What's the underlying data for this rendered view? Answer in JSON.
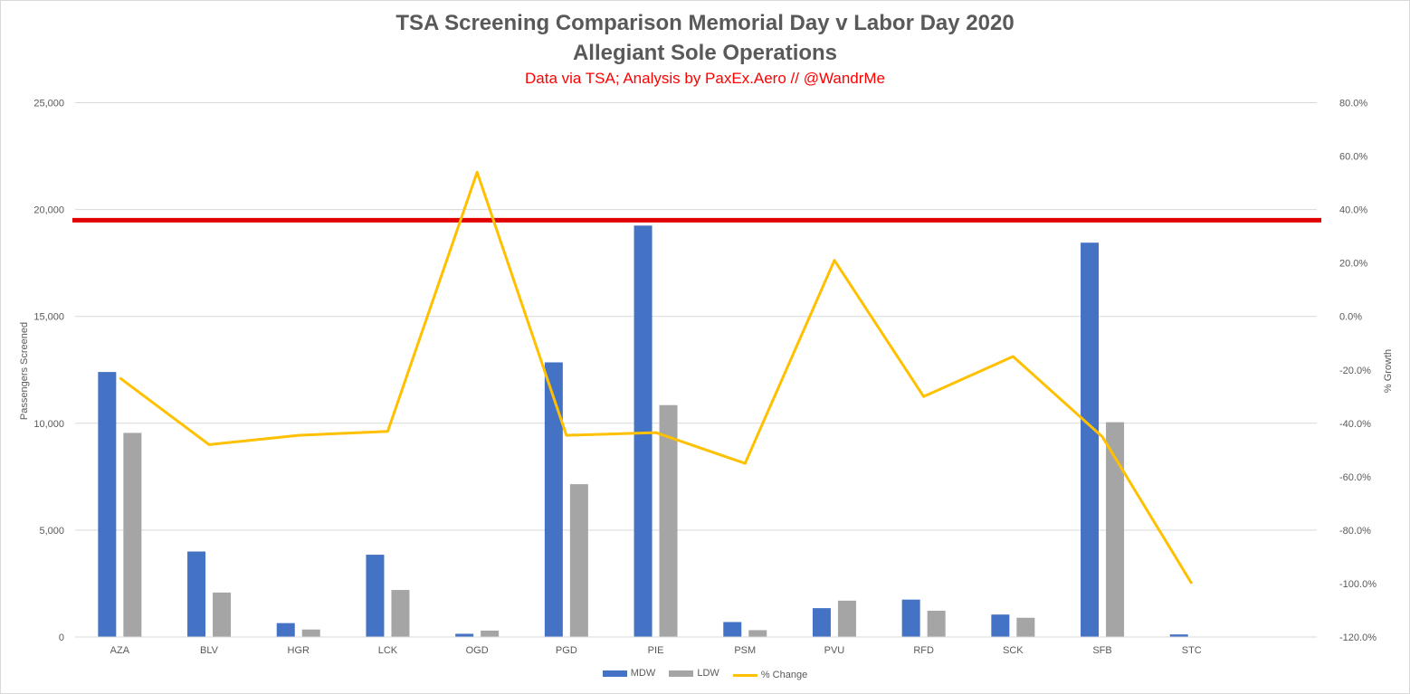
{
  "chart_data": {
    "type": "bar",
    "title": "TSA Screening Comparison Memorial Day v Labor Day 2020",
    "title_line2": "Allegiant Sole Operations",
    "subtitle": "Data via TSA; Analysis by PaxEx.Aero // @WandrMe",
    "ylabel": "Passengers Screened",
    "y2label": "% Growth",
    "ylim": [
      0,
      25000
    ],
    "y2lim": [
      -120,
      80
    ],
    "yticks": [
      0,
      5000,
      10000,
      15000,
      20000,
      25000
    ],
    "ytick_labels": [
      "0",
      "5,000",
      "10,000",
      "15,000",
      "20,000",
      "25,000"
    ],
    "y2ticks": [
      -120,
      -100,
      -80,
      -60,
      -40,
      -20,
      0,
      20,
      40,
      60,
      80
    ],
    "y2tick_labels": [
      "-120.0%",
      "-100.0%",
      "-80.0%",
      "-60.0%",
      "-40.0%",
      "-20.0%",
      "0.0%",
      "20.0%",
      "40.0%",
      "60.0%",
      "80.0%"
    ],
    "categories": [
      "AZA",
      "BLV",
      "HGR",
      "LCK",
      "OGD",
      "PGD",
      "PIE",
      "PSM",
      "PVU",
      "RFD",
      "SCK",
      "SFB",
      "STC"
    ],
    "series": [
      {
        "name": "MDW",
        "type": "bar",
        "axis": "left",
        "color": "#4472c4",
        "values": [
          12400,
          4000,
          650,
          3850,
          150,
          12850,
          19250,
          700,
          1350,
          1750,
          1050,
          18450,
          120
        ]
      },
      {
        "name": "LDW",
        "type": "bar",
        "axis": "left",
        "color": "#a5a5a5",
        "values": [
          9550,
          2080,
          350,
          2200,
          300,
          7150,
          10850,
          320,
          1700,
          1230,
          900,
          10050,
          0
        ]
      },
      {
        "name": "% Change",
        "type": "line",
        "axis": "right",
        "color": "#ffc000",
        "values": [
          -23,
          -48,
          -44.5,
          -43,
          54,
          -44.5,
          -43.5,
          -55,
          21,
          -30,
          -15,
          -45,
          -100
        ]
      }
    ],
    "reference_line": {
      "value": 19500,
      "axis": "left",
      "color": "#e00000"
    },
    "grid": true,
    "legend_position": "bottom"
  }
}
